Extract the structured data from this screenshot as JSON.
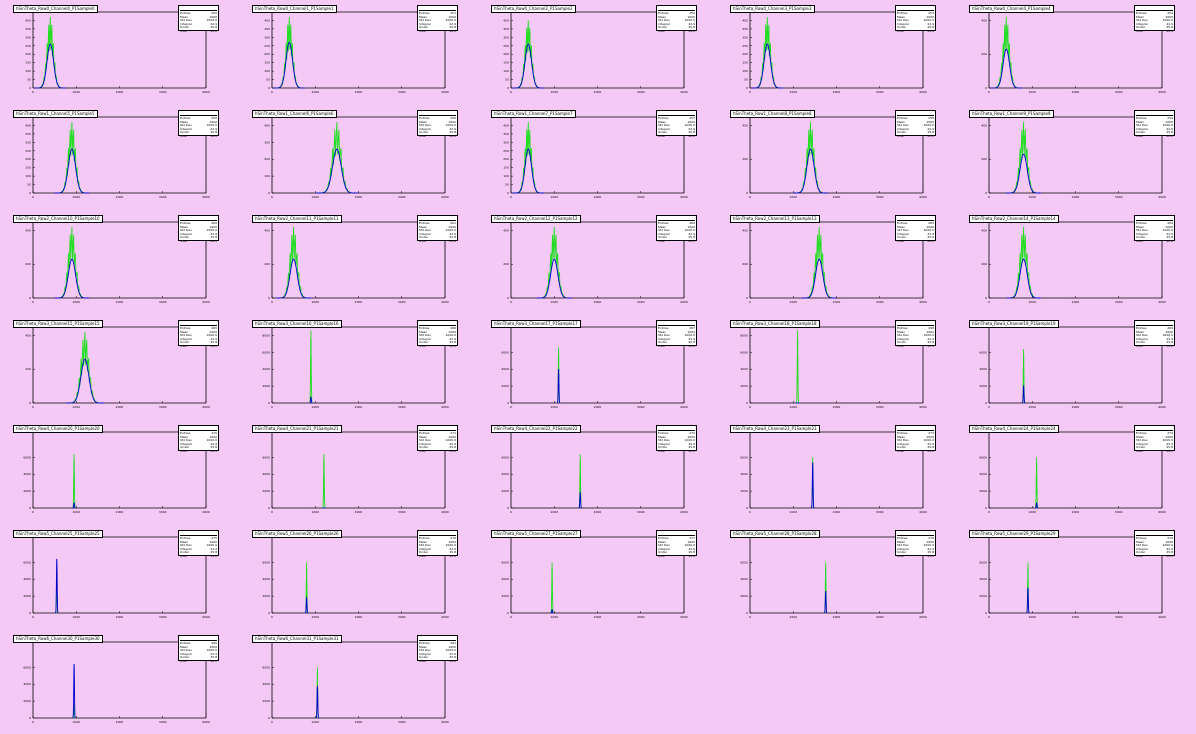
{
  "canvas": {
    "background": "#f5c9f5",
    "green": "#22dd22",
    "blue": "#0000cc"
  },
  "chart_data": [
    {
      "type": "line",
      "title": "hSinTheta_Row0_Channel0_P1Sample0",
      "x_range": [
        0,
        4000
      ],
      "ylim": [
        0,
        450
      ],
      "y_ticks": [
        "0",
        "50",
        "100",
        "150",
        "200",
        "250",
        "300",
        "350",
        "400"
      ],
      "peak_center": 400,
      "peak_width": 180,
      "green_peak": 420,
      "blue_peak": 260,
      "stat_values": [
        "250",
        "1000",
        "1000.0",
        "22.9",
        "25.8",
        "28.0"
      ]
    },
    {
      "type": "line",
      "title": "hSinTheta_Row0_Channel1_P1Sample1",
      "x_range": [
        0,
        4000
      ],
      "ylim": [
        0,
        450
      ],
      "y_ticks": [
        "0",
        "50",
        "100",
        "150",
        "200",
        "250",
        "300",
        "350",
        "400"
      ],
      "peak_center": 400,
      "peak_width": 180,
      "green_peak": 420,
      "blue_peak": 270,
      "stat_values": [
        "251",
        "1000",
        "1000.0",
        "22.9",
        "25.8",
        "28.0"
      ]
    },
    {
      "type": "line",
      "title": "hSinTheta_Row0_Channel2_P1Sample2",
      "x_range": [
        0,
        4000
      ],
      "ylim": [
        0,
        450
      ],
      "y_ticks": [
        "0",
        "50",
        "100",
        "150",
        "200",
        "250",
        "300",
        "350",
        "400"
      ],
      "peak_center": 400,
      "peak_width": 180,
      "green_peak": 400,
      "blue_peak": 260,
      "stat_values": [
        "252",
        "1000",
        "1000.0",
        "22.9",
        "25.8",
        "28.0"
      ]
    },
    {
      "type": "line",
      "title": "hSinTheta_Row0_Channel3_P1Sample3",
      "x_range": [
        0,
        4000
      ],
      "ylim": [
        0,
        450
      ],
      "y_ticks": [
        "0",
        "50",
        "100",
        "150",
        "200",
        "250",
        "300",
        "350",
        "400"
      ],
      "peak_center": 400,
      "peak_width": 180,
      "green_peak": 420,
      "blue_peak": 260,
      "stat_values": [
        "253",
        "1000",
        "1000.0",
        "22.9",
        "25.8",
        "28.0"
      ]
    },
    {
      "type": "line",
      "title": "hSinTheta_Row0_Channel4_P1Sample4",
      "x_range": [
        0,
        4000
      ],
      "ylim": [
        0,
        450
      ],
      "y_ticks": [
        "0",
        "200",
        "400"
      ],
      "peak_center": 400,
      "peak_width": 180,
      "green_peak": 420,
      "blue_peak": 230,
      "stat_values": [
        "254",
        "1000",
        "1000.0",
        "22.9",
        "25.8",
        "28.0"
      ]
    },
    {
      "type": "line",
      "title": "hSinTheta_Row1_Channel5_P1Sample5",
      "x_range": [
        0,
        4000
      ],
      "ylim": [
        0,
        450
      ],
      "y_ticks": [
        "0",
        "50",
        "100",
        "150",
        "200",
        "250",
        "300",
        "350",
        "400"
      ],
      "peak_center": 900,
      "peak_width": 200,
      "green_peak": 420,
      "blue_peak": 260,
      "stat_values": [
        "255",
        "1000",
        "1000.0",
        "22.9",
        "25.8",
        "28.0"
      ]
    },
    {
      "type": "line",
      "title": "hSinTheta_Row1_Channel6_P1Sample6",
      "x_range": [
        0,
        4000
      ],
      "ylim": [
        0,
        450
      ],
      "y_ticks": [
        "0",
        "100",
        "200",
        "300",
        "400"
      ],
      "peak_center": 1500,
      "peak_width": 240,
      "green_peak": 420,
      "blue_peak": 260,
      "stat_values": [
        "256",
        "1000",
        "1000.0",
        "22.9",
        "25.8",
        "28.0"
      ]
    },
    {
      "type": "line",
      "title": "hSinTheta_Row1_Channel7_P1Sample7",
      "x_range": [
        0,
        4000
      ],
      "ylim": [
        0,
        450
      ],
      "y_ticks": [
        "0",
        "50",
        "100",
        "150",
        "200",
        "250",
        "300",
        "350",
        "400"
      ],
      "peak_center": 400,
      "peak_width": 180,
      "green_peak": 420,
      "blue_peak": 260,
      "stat_values": [
        "257",
        "1000",
        "1000.0",
        "22.9",
        "25.8",
        "28.0"
      ]
    },
    {
      "type": "line",
      "title": "hSinTheta_Row1_Channel8_P1Sample8",
      "x_range": [
        0,
        4000
      ],
      "ylim": [
        0,
        450
      ],
      "y_ticks": [
        "0",
        "200",
        "400"
      ],
      "peak_center": 1400,
      "peak_width": 200,
      "green_peak": 420,
      "blue_peak": 260,
      "stat_values": [
        "258",
        "1000",
        "1000.0",
        "22.9",
        "25.8",
        "28.0"
      ]
    },
    {
      "type": "line",
      "title": "hSinTheta_Row1_Channel9_P1Sample9",
      "x_range": [
        0,
        4000
      ],
      "ylim": [
        0,
        450
      ],
      "y_ticks": [
        "0",
        "200",
        "400"
      ],
      "peak_center": 800,
      "peak_width": 200,
      "green_peak": 420,
      "blue_peak": 230,
      "stat_values": [
        "259",
        "1000",
        "1000.0",
        "22.9",
        "25.8",
        "28.0"
      ]
    },
    {
      "type": "line",
      "title": "hSinTheta_Row2_Channel10_P1Sample10",
      "x_range": [
        0,
        4000
      ],
      "ylim": [
        0,
        450
      ],
      "y_ticks": [
        "0",
        "200",
        "400"
      ],
      "peak_center": 900,
      "peak_width": 200,
      "green_peak": 420,
      "blue_peak": 230,
      "stat_values": [
        "260",
        "1000",
        "1000.0",
        "22.9",
        "25.8",
        "28.0"
      ]
    },
    {
      "type": "line",
      "title": "hSinTheta_Row2_Channel11_P1Sample11",
      "x_range": [
        0,
        4000
      ],
      "ylim": [
        0,
        450
      ],
      "y_ticks": [
        "0",
        "200",
        "400"
      ],
      "peak_center": 500,
      "peak_width": 200,
      "green_peak": 420,
      "blue_peak": 230,
      "stat_values": [
        "261",
        "1000",
        "1000.0",
        "22.9",
        "25.8",
        "28.0"
      ]
    },
    {
      "type": "line",
      "title": "hSinTheta_Row2_Channel12_P1Sample12",
      "x_range": [
        0,
        4000
      ],
      "ylim": [
        0,
        450
      ],
      "y_ticks": [
        "0",
        "200",
        "400"
      ],
      "peak_center": 1000,
      "peak_width": 200,
      "green_peak": 420,
      "blue_peak": 230,
      "stat_values": [
        "262",
        "1000",
        "1000.0",
        "22.9",
        "25.8",
        "28.0"
      ]
    },
    {
      "type": "line",
      "title": "hSinTheta_Row2_Channel13_P1Sample13",
      "x_range": [
        0,
        4000
      ],
      "ylim": [
        0,
        450
      ],
      "y_ticks": [
        "0",
        "200",
        "400"
      ],
      "peak_center": 1600,
      "peak_width": 200,
      "green_peak": 420,
      "blue_peak": 230,
      "stat_values": [
        "263",
        "1000",
        "1000.0",
        "22.9",
        "25.8",
        "28.0"
      ]
    },
    {
      "type": "line",
      "title": "hSinTheta_Row2_Channel14_P1Sample14",
      "x_range": [
        0,
        4000
      ],
      "ylim": [
        0,
        450
      ],
      "y_ticks": [
        "0",
        "200",
        "400"
      ],
      "peak_center": 800,
      "peak_width": 200,
      "green_peak": 420,
      "blue_peak": 230,
      "stat_values": [
        "264",
        "1000",
        "1000.0",
        "22.9",
        "25.8",
        "28.0"
      ]
    },
    {
      "type": "line",
      "title": "hSinTheta_Row3_Channel15_P1Sample15",
      "x_range": [
        0,
        4000
      ],
      "ylim": [
        0,
        450
      ],
      "y_ticks": [
        "0",
        "200",
        "400"
      ],
      "peak_center": 1200,
      "peak_width": 220,
      "green_peak": 420,
      "blue_peak": 260,
      "stat_values": [
        "265",
        "1000",
        "1000.0",
        "22.9",
        "25.8",
        "28.0"
      ]
    },
    {
      "type": "line",
      "title": "hSinTheta_Row3_Channel16_P1Sample16",
      "x_range": [
        0,
        4000
      ],
      "ylim": [
        0,
        9000
      ],
      "y_ticks": [
        "0",
        "2000",
        "4000",
        "6000",
        "8000"
      ],
      "peak_center": 900,
      "peak_width": 20,
      "green_peak": 8600,
      "blue_peak": 700,
      "stat_values": [
        "266",
        "1000",
        "1000.0",
        "22.9",
        "25.8",
        "28.0"
      ]
    },
    {
      "type": "line",
      "title": "hSinTheta_Row3_Channel17_P1Sample17",
      "x_range": [
        0,
        4000
      ],
      "ylim": [
        0,
        9000
      ],
      "y_ticks": [
        "0",
        "2000",
        "4000",
        "6000"
      ],
      "peak_center": 1100,
      "peak_width": 20,
      "green_peak": 6600,
      "blue_peak": 4000,
      "stat_values": [
        "267",
        "1000",
        "1000.0",
        "22.9",
        "25.8",
        "28.0"
      ]
    },
    {
      "type": "line",
      "title": "hSinTheta_Row3_Channel18_P1Sample18",
      "x_range": [
        0,
        4000
      ],
      "ylim": [
        0,
        9000
      ],
      "y_ticks": [
        "0",
        "2000",
        "4000",
        "6000",
        "8000"
      ],
      "peak_center": 1100,
      "peak_width": 20,
      "green_peak": 8600,
      "blue_peak": 0,
      "stat_values": [
        "268",
        "1000",
        "1000.0",
        "22.9",
        "25.8",
        "28.0"
      ]
    },
    {
      "type": "line",
      "title": "hSinTheta_Row3_Channel19_P1Sample19",
      "x_range": [
        0,
        4000
      ],
      "ylim": [
        0,
        9000
      ],
      "y_ticks": [
        "0",
        "2000",
        "4000",
        "6000"
      ],
      "peak_center": 800,
      "peak_width": 20,
      "green_peak": 6400,
      "blue_peak": 2000,
      "stat_values": [
        "269",
        "1000",
        "1000.0",
        "22.9",
        "25.8",
        "28.0"
      ]
    },
    {
      "type": "line",
      "title": "hSinTheta_Row4_Channel20_P1Sample20",
      "x_range": [
        0,
        4000
      ],
      "ylim": [
        0,
        9000
      ],
      "y_ticks": [
        "0",
        "2000",
        "4000",
        "6000"
      ],
      "peak_center": 950,
      "peak_width": 20,
      "green_peak": 6400,
      "blue_peak": 600,
      "stat_values": [
        "270",
        "1000",
        "1000.0",
        "22.9",
        "25.8",
        "28.0"
      ]
    },
    {
      "type": "line",
      "title": "hSinTheta_Row4_Channel21_P1Sample21",
      "x_range": [
        0,
        4000
      ],
      "ylim": [
        0,
        9000
      ],
      "y_ticks": [
        "0",
        "2000",
        "4000",
        "6000"
      ],
      "peak_center": 1200,
      "peak_width": 20,
      "green_peak": 6400,
      "blue_peak": 0,
      "stat_values": [
        "271",
        "1000",
        "1000.0",
        "22.9",
        "25.8",
        "28.0"
      ]
    },
    {
      "type": "line",
      "title": "hSinTheta_Row4_Channel22_P1Sample22",
      "x_range": [
        0,
        4000
      ],
      "ylim": [
        0,
        9000
      ],
      "y_ticks": [
        "0",
        "2000",
        "4000",
        "6000"
      ],
      "peak_center": 1600,
      "peak_width": 20,
      "green_peak": 6400,
      "blue_peak": 1800,
      "stat_values": [
        "272",
        "1000",
        "1000.0",
        "22.9",
        "25.8",
        "28.0"
      ]
    },
    {
      "type": "line",
      "title": "hSinTheta_Row4_Channel23_P1Sample23",
      "x_range": [
        0,
        4000
      ],
      "ylim": [
        0,
        9000
      ],
      "y_ticks": [
        "0",
        "2000",
        "4000",
        "6000"
      ],
      "peak_center": 1450,
      "peak_width": 20,
      "green_peak": 6000,
      "blue_peak": 5400,
      "stat_values": [
        "273",
        "1000",
        "1000.0",
        "22.9",
        "25.8",
        "28.0"
      ]
    },
    {
      "type": "line",
      "title": "hSinTheta_Row4_Channel24_P1Sample24",
      "x_range": [
        0,
        4000
      ],
      "ylim": [
        0,
        9000
      ],
      "y_ticks": [
        "0",
        "2000",
        "4000",
        "6000"
      ],
      "peak_center": 1100,
      "peak_width": 20,
      "green_peak": 6000,
      "blue_peak": 600,
      "stat_values": [
        "274",
        "1000",
        "1000.0",
        "22.9",
        "25.8",
        "28.0"
      ]
    },
    {
      "type": "line",
      "title": "hSinTheta_Row5_Channel25_P1Sample25",
      "x_range": [
        0,
        4000
      ],
      "ylim": [
        0,
        9000
      ],
      "y_ticks": [
        "0",
        "2000",
        "4000",
        "6000"
      ],
      "peak_center": 550,
      "peak_width": 20,
      "green_peak": 5000,
      "blue_peak": 6400,
      "stat_values": [
        "275",
        "1000",
        "1000.0",
        "22.9",
        "25.8",
        "28.0"
      ]
    },
    {
      "type": "line",
      "title": "hSinTheta_Row5_Channel26_P1Sample26",
      "x_range": [
        0,
        4000
      ],
      "ylim": [
        0,
        9000
      ],
      "y_ticks": [
        "0",
        "2000",
        "4000",
        "6000"
      ],
      "peak_center": 800,
      "peak_width": 20,
      "green_peak": 6000,
      "blue_peak": 1800,
      "stat_values": [
        "276",
        "1000",
        "1000.0",
        "22.9",
        "25.8",
        "28.0"
      ]
    },
    {
      "type": "line",
      "title": "hSinTheta_Row5_Channel27_P1Sample27",
      "x_range": [
        0,
        4000
      ],
      "ylim": [
        0,
        9000
      ],
      "y_ticks": [
        "0",
        "2000",
        "4000",
        "6000"
      ],
      "peak_center": 950,
      "peak_width": 20,
      "green_peak": 6000,
      "blue_peak": 400,
      "stat_values": [
        "277",
        "1000",
        "1000.0",
        "22.9",
        "25.8",
        "28.0"
      ]
    },
    {
      "type": "line",
      "title": "hSinTheta_Row5_Channel28_P1Sample28",
      "x_range": [
        0,
        4000
      ],
      "ylim": [
        0,
        9000
      ],
      "y_ticks": [
        "0",
        "2000",
        "4000",
        "6000"
      ],
      "peak_center": 1750,
      "peak_width": 20,
      "green_peak": 6000,
      "blue_peak": 2600,
      "stat_values": [
        "278",
        "1000",
        "1000.0",
        "22.9",
        "25.8",
        "28.0"
      ]
    },
    {
      "type": "line",
      "title": "hSinTheta_Row5_Channel29_P1Sample29",
      "x_range": [
        0,
        4000
      ],
      "ylim": [
        0,
        9000
      ],
      "y_ticks": [
        "0",
        "2000",
        "4000",
        "6000"
      ],
      "peak_center": 900,
      "peak_width": 20,
      "green_peak": 6000,
      "blue_peak": 3000,
      "stat_values": [
        "279",
        "1000",
        "1000.0",
        "22.9",
        "25.8",
        "28.0"
      ]
    },
    {
      "type": "line",
      "title": "hSinTheta_Row6_Channel30_P1Sample30",
      "x_range": [
        0,
        4000
      ],
      "ylim": [
        0,
        9000
      ],
      "y_ticks": [
        "0",
        "2000",
        "4000",
        "6000"
      ],
      "peak_center": 950,
      "peak_width": 20,
      "green_peak": 1400,
      "blue_peak": 6400,
      "stat_values": [
        "280",
        "1000",
        "1000.0",
        "22.9",
        "25.8",
        "28.0"
      ]
    },
    {
      "type": "line",
      "title": "hSinTheta_Row6_Channel31_P1Sample31",
      "x_range": [
        0,
        4000
      ],
      "ylim": [
        0,
        9000
      ],
      "y_ticks": [
        "0",
        "2000",
        "4000",
        "6000"
      ],
      "peak_center": 1050,
      "peak_width": 20,
      "green_peak": 6000,
      "blue_peak": 3800,
      "stat_values": [
        "281",
        "1000",
        "1000.0",
        "22.9",
        "25.8",
        "28.0"
      ]
    }
  ],
  "stat_labels": [
    "Entries",
    "Mean",
    "Std Dev",
    "Integral",
    "Under",
    "Over"
  ]
}
